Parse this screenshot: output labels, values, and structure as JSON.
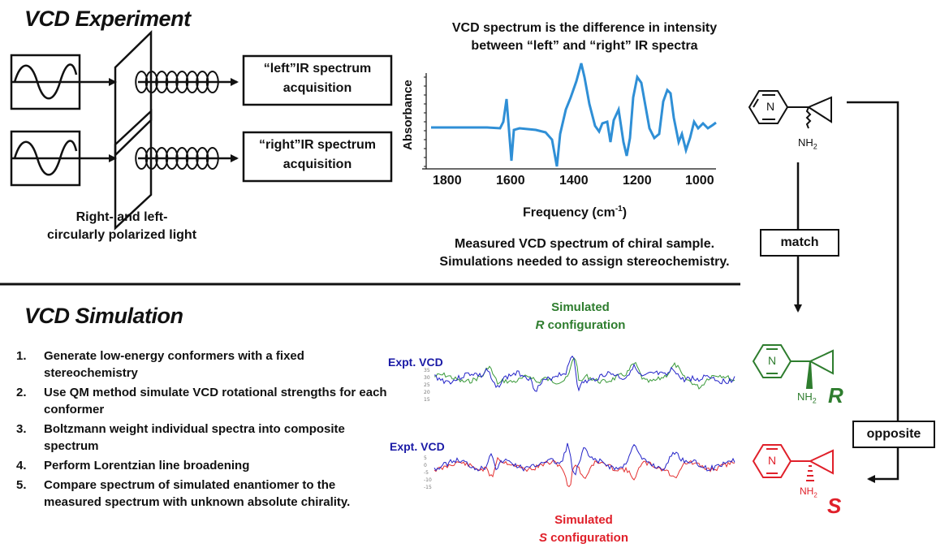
{
  "experiment": {
    "title": "VCD Experiment",
    "left_box": [
      "“left”IR spectrum",
      "acquisition"
    ],
    "right_box": [
      "“right”IR spectrum",
      "acquisition"
    ],
    "light_caption": [
      "Right- and left-",
      "circularly polarized light"
    ]
  },
  "spectrum": {
    "heading": [
      "VCD spectrum is the difference in intensity",
      "between “left” and “right”  IR spectra"
    ],
    "ylabel": "Absorbance",
    "xlabel_main": "Frequency (cm",
    "xlabel_sup": "-1",
    "xlabel_end": ")",
    "xticks": [
      "1800",
      "1600",
      "1400",
      "1200",
      "1000"
    ],
    "caption": [
      "Measured VCD spectrum of chiral sample.",
      "Simulations needed to assign stereochemistry."
    ],
    "line_color": "#2f8fd6"
  },
  "flow": {
    "match_label": "match",
    "opposite_label": "opposite"
  },
  "molecules": {
    "top_n": "N",
    "top_amine": "NH",
    "top_amine_sub": "2",
    "r_n": "N",
    "r_amine": "NH",
    "r_amine_sub": "2",
    "r_letter": "R",
    "s_n": "N",
    "s_amine": "NH",
    "s_amine_sub": "2",
    "s_letter": "S",
    "r_color": "#2e7d2e",
    "s_color": "#e0202a"
  },
  "simulation": {
    "title": "VCD Simulation",
    "steps": [
      {
        "num": "1.",
        "text": "Generate low-energy conformers with a fixed stereochemistry"
      },
      {
        "num": "2.",
        "text": "Use QM method simulate VCD rotational strengths for each conformer"
      },
      {
        "num": "3.",
        "text": "Boltzmann weight individual spectra into composite spectrum"
      },
      {
        "num": "4.",
        "text": "Perform Lorentzian line broadening"
      },
      {
        "num": "5.",
        "text": "Compare spectrum of simulated enantiomer to the measured spectrum with unknown absolute chirality."
      }
    ],
    "sim_r_label": [
      "Simulated",
      "configuration"
    ],
    "sim_r_letter": "R",
    "sim_s_label": [
      "Simulated",
      "configuration"
    ],
    "sim_s_letter": "S",
    "expt_label_1": "Expt. VCD",
    "expt_label_2": "Expt. VCD"
  }
}
